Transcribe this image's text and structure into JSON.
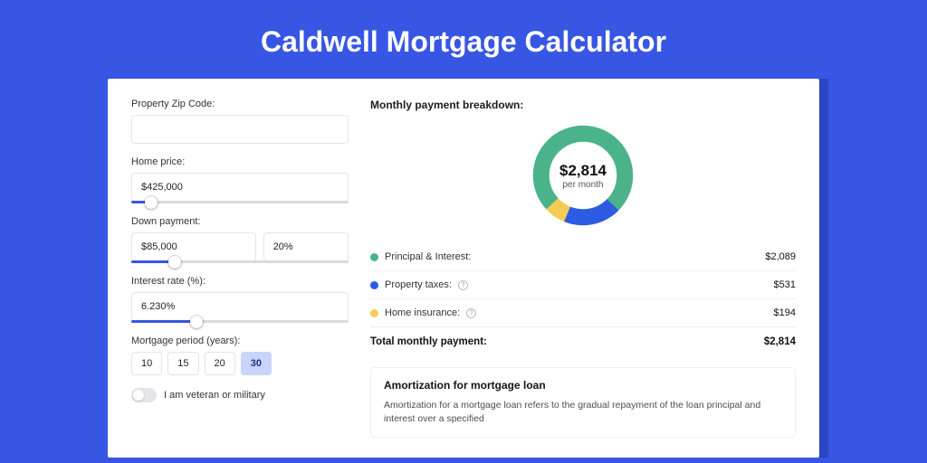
{
  "page": {
    "title": "Caldwell Mortgage Calculator",
    "bg_color": "#3756e4",
    "panel_shadow_color": "#2b44c2"
  },
  "form": {
    "zip": {
      "label": "Property Zip Code:",
      "value": ""
    },
    "home_price": {
      "label": "Home price:",
      "value": "$425,000",
      "slider_pct": 9
    },
    "down_payment": {
      "label": "Down payment:",
      "value": "$85,000",
      "pct_value": "20%",
      "slider_pct": 20
    },
    "interest_rate": {
      "label": "Interest rate (%):",
      "value": "6.230%",
      "slider_pct": 30
    },
    "period": {
      "label": "Mortgage period (years):",
      "options": [
        "10",
        "15",
        "20",
        "30"
      ],
      "selected": "30"
    },
    "veteran": {
      "label": "I am veteran or military",
      "on": false
    }
  },
  "result": {
    "heading": "Monthly payment breakdown:",
    "total_amount": "$2,814",
    "total_sub": "per month",
    "donut": {
      "segments": [
        {
          "key": "principal_interest",
          "color": "#4bb38a",
          "value": 2089
        },
        {
          "key": "property_taxes",
          "color": "#2d5be3",
          "value": 531
        },
        {
          "key": "home_insurance",
          "color": "#f3cd53",
          "value": 194
        }
      ],
      "stroke_width": 17,
      "bg_color": "#ffffff"
    },
    "legend": [
      {
        "label": "Principal & Interest:",
        "color": "#4bb38a",
        "amount": "$2,089",
        "info": false
      },
      {
        "label": "Property taxes:",
        "color": "#2d5be3",
        "amount": "$531",
        "info": true
      },
      {
        "label": "Home insurance:",
        "color": "#f3cd53",
        "amount": "$194",
        "info": true
      }
    ],
    "total_row": {
      "label": "Total monthly payment:",
      "amount": "$2,814"
    }
  },
  "amortization": {
    "title": "Amortization for mortgage loan",
    "text": "Amortization for a mortgage loan refers to the gradual repayment of the loan principal and interest over a specified"
  }
}
